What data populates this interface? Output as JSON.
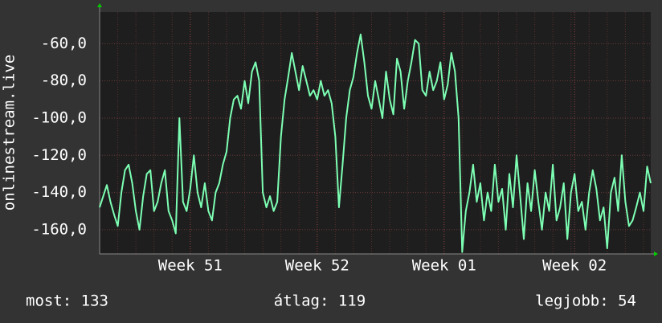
{
  "chart_data": {
    "type": "line",
    "ylabel": "onlinestream.live",
    "color": "#7dffb4",
    "categories": [
      null,
      null,
      null,
      null,
      null,
      null,
      null,
      null,
      null,
      null,
      null,
      null,
      null,
      null,
      null,
      null,
      null,
      null,
      null,
      null,
      null,
      null,
      null,
      null,
      null,
      "Week 51",
      null,
      null,
      null,
      null,
      null,
      null,
      null,
      null,
      null,
      null,
      null,
      null,
      null,
      null,
      null,
      null,
      null,
      null,
      null,
      null,
      null,
      null,
      null,
      null,
      null,
      null,
      null,
      null,
      null,
      null,
      null,
      null,
      null,
      null,
      "Week 52",
      null,
      null,
      null,
      null,
      null,
      null,
      null,
      null,
      null,
      null,
      null,
      null,
      null,
      null,
      null,
      null,
      null,
      null,
      null,
      null,
      null,
      null,
      null,
      null,
      null,
      null,
      null,
      null,
      null,
      null,
      null,
      null,
      null,
      null,
      "Week 01",
      null,
      null,
      null,
      null,
      null,
      null,
      null,
      null,
      null,
      null,
      null,
      null,
      null,
      null,
      null,
      null,
      null,
      null,
      null,
      null,
      null,
      null,
      null,
      null,
      null,
      null,
      null,
      null,
      null,
      null,
      null,
      null,
      null,
      null,
      null,
      "Week 02",
      null,
      null,
      null,
      null,
      null,
      null,
      null,
      null,
      null,
      null,
      null,
      null,
      null,
      null,
      null,
      null,
      null,
      null,
      null,
      null,
      null
    ],
    "values": [
      -148,
      -142,
      -136,
      -145,
      -152,
      -158,
      -140,
      -128,
      -125,
      -135,
      -150,
      -160,
      -142,
      -130,
      -128,
      -150,
      -145,
      -135,
      -128,
      -150,
      -155,
      -162,
      -100,
      -145,
      -150,
      -138,
      -120,
      -140,
      -148,
      -135,
      -150,
      -155,
      -140,
      -135,
      -125,
      -118,
      -100,
      -90,
      -88,
      -95,
      -80,
      -92,
      -75,
      -70,
      -80,
      -140,
      -148,
      -142,
      -150,
      -145,
      -110,
      -90,
      -78,
      -65,
      -75,
      -85,
      -72,
      -80,
      -88,
      -85,
      -90,
      -80,
      -88,
      -85,
      -92,
      -110,
      -148,
      -125,
      -100,
      -85,
      -78,
      -65,
      -55,
      -70,
      -88,
      -95,
      -80,
      -90,
      -100,
      -75,
      -90,
      -98,
      -68,
      -75,
      -95,
      -80,
      -70,
      -58,
      -60,
      -85,
      -88,
      -75,
      -85,
      -80,
      -70,
      -90,
      -82,
      -65,
      -75,
      -100,
      -172,
      -150,
      -140,
      -125,
      -145,
      -135,
      -155,
      -140,
      -150,
      -125,
      -145,
      -138,
      -160,
      -130,
      -148,
      -120,
      -142,
      -165,
      -135,
      -150,
      -128,
      -145,
      -160,
      -140,
      -150,
      -125,
      -155,
      -148,
      -135,
      -165,
      -140,
      -130,
      -150,
      -145,
      -160,
      -140,
      -128,
      -138,
      -155,
      -148,
      -170,
      -140,
      -132,
      -150,
      -120,
      -145,
      -158,
      -155,
      -148,
      -140,
      -150,
      -126,
      -135
    ],
    "ylim": [
      -173,
      -43
    ],
    "yticks": [
      {
        "value": -160,
        "label": "-160,0"
      },
      {
        "value": -140,
        "label": "-140,0"
      },
      {
        "value": -120,
        "label": "-120,0"
      },
      {
        "value": -100,
        "label": "-100,0"
      },
      {
        "value": -80,
        "label": "-80,0"
      },
      {
        "value": -60,
        "label": "-60,0"
      }
    ],
    "grid": true,
    "footer": [
      "most: 133",
      "átlag: 119",
      "legjobb: 54"
    ]
  }
}
